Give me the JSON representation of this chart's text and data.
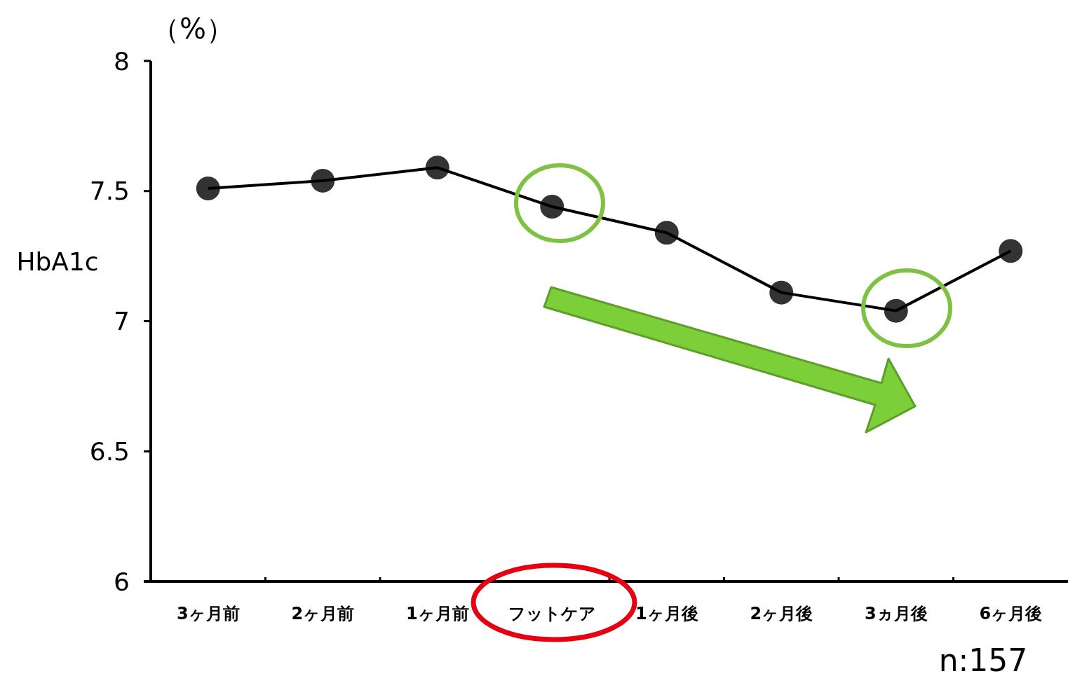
{
  "chart_data": {
    "type": "line",
    "ylabel": "HbA1c",
    "annotations": [
      "（%）",
      "n:157"
    ],
    "categories": [
      "3ヶ月前",
      "2ヶ月前",
      "1ヶ月前",
      "フットケア",
      "1ヶ月後",
      "2ヶ月後",
      "3ヵ月後",
      "6ヶ月後"
    ],
    "series": [
      {
        "color": "#000000",
        "values": [
          7.51,
          7.54,
          7.59,
          7.44,
          7.34,
          7.11,
          7.04,
          7.27
        ]
      }
    ],
    "ylim": [
      6,
      8
    ],
    "yticks": [
      6,
      6.5,
      7,
      7.5,
      8
    ],
    "grid": false,
    "marker": "circle",
    "line_style": "solid"
  }
}
